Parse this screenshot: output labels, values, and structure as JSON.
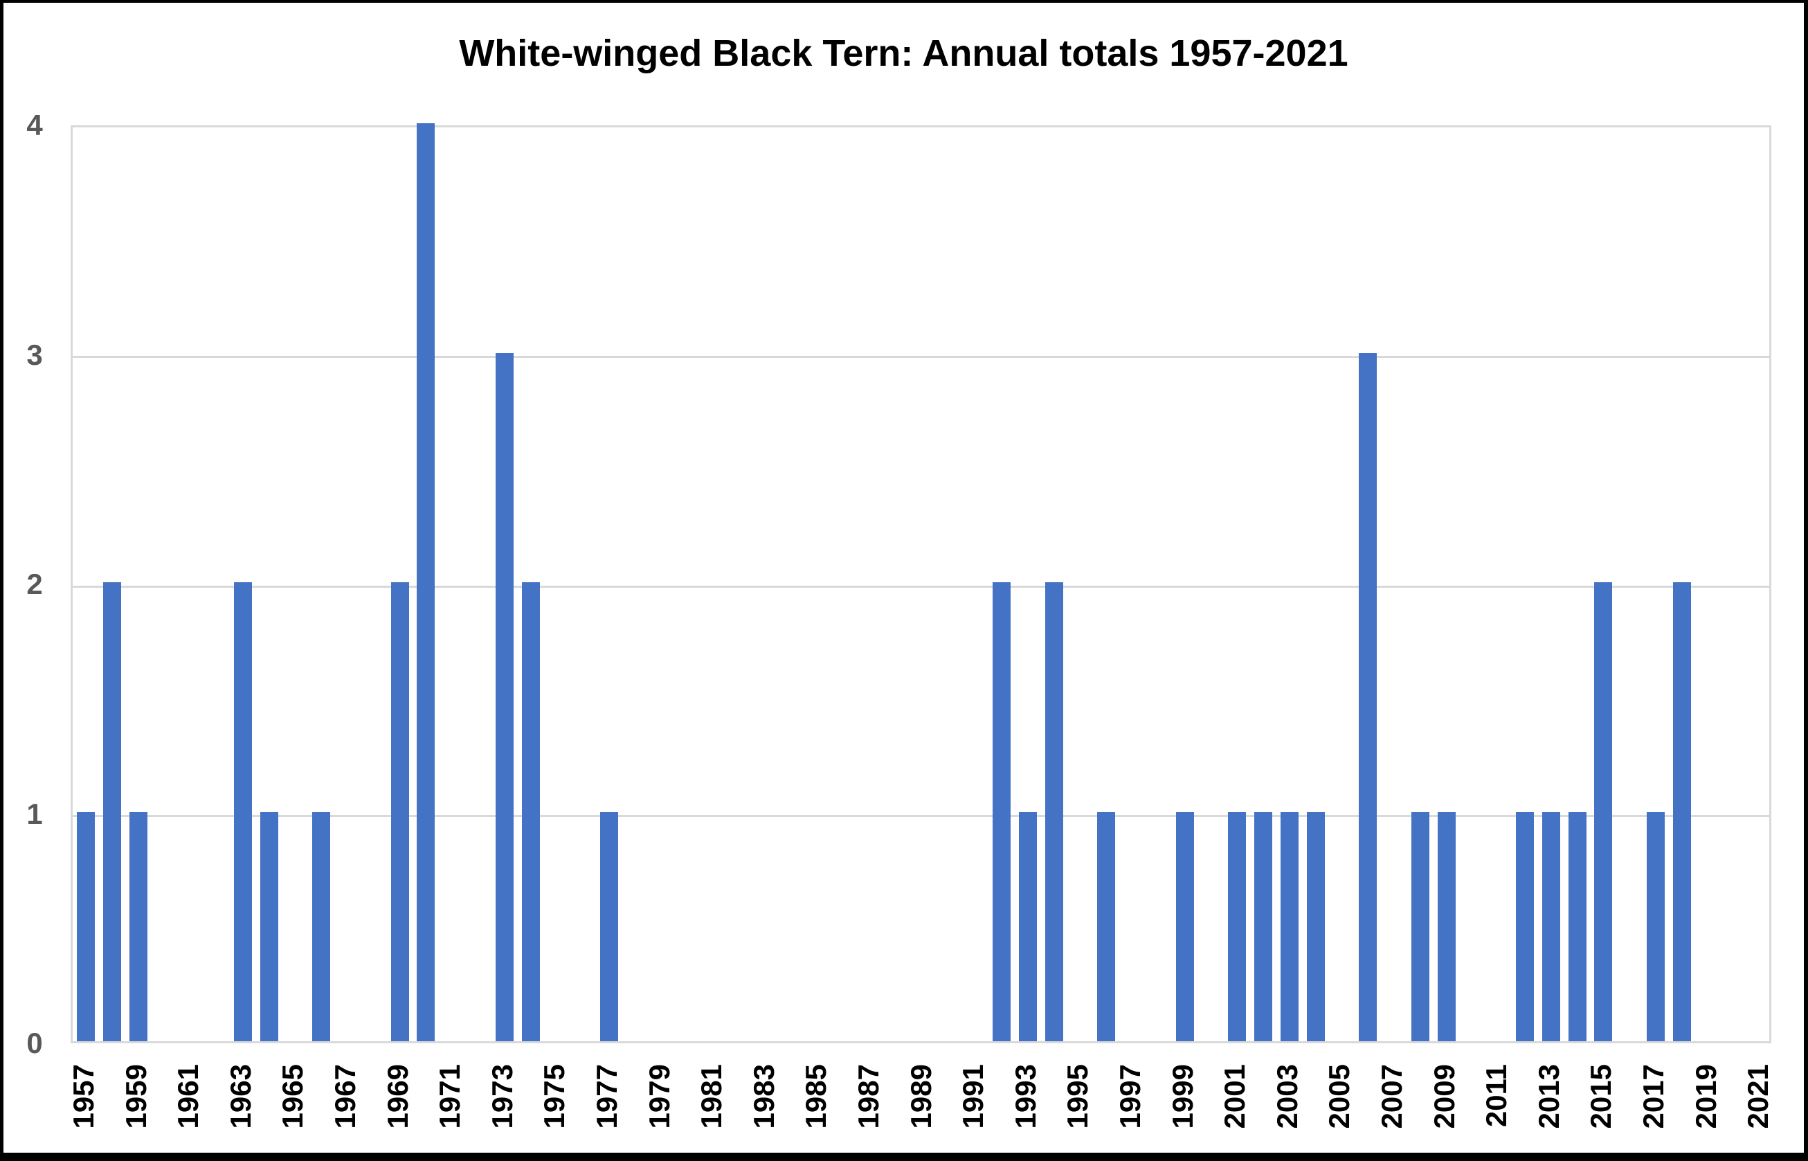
{
  "title": "White-winged Black Tern: Annual totals 1957-2021",
  "colors": {
    "bar": "#4472C4",
    "gridline": "#D9D9D9",
    "y_axis_label": "#595959",
    "x_axis_label": "#000000",
    "title_text": "#000000",
    "frame": "#000000",
    "background": "#FFFFFF"
  },
  "y_axis": {
    "tick_labels": [
      "0",
      "1",
      "2",
      "3",
      "4"
    ],
    "min": 0,
    "max": 4
  },
  "x_axis": {
    "tick_labels": [
      "1957",
      "1959",
      "1961",
      "1963",
      "1965",
      "1967",
      "1969",
      "1971",
      "1973",
      "1975",
      "1977",
      "1979",
      "1981",
      "1983",
      "1985",
      "1987",
      "1989",
      "1991",
      "1993",
      "1995",
      "1997",
      "1999",
      "2001",
      "2003",
      "2005",
      "2007",
      "2009",
      "2011",
      "2013",
      "2015",
      "2017",
      "2019",
      "2021"
    ]
  },
  "chart_data": {
    "type": "bar",
    "title": "White-winged Black Tern: Annual totals 1957-2021",
    "xlabel": "",
    "ylabel": "",
    "ylim": [
      0,
      4
    ],
    "grid": "horizontal",
    "legend": false,
    "bar_color": "#4472C4",
    "categories": [
      1957,
      1958,
      1959,
      1960,
      1961,
      1962,
      1963,
      1964,
      1965,
      1966,
      1967,
      1968,
      1969,
      1970,
      1971,
      1972,
      1973,
      1974,
      1975,
      1976,
      1977,
      1978,
      1979,
      1980,
      1981,
      1982,
      1983,
      1984,
      1985,
      1986,
      1987,
      1988,
      1989,
      1990,
      1991,
      1992,
      1993,
      1994,
      1995,
      1996,
      1997,
      1998,
      1999,
      2000,
      2001,
      2002,
      2003,
      2004,
      2005,
      2006,
      2007,
      2008,
      2009,
      2010,
      2011,
      2012,
      2013,
      2014,
      2015,
      2016,
      2017,
      2018,
      2019,
      2020,
      2021
    ],
    "values": [
      1,
      2,
      1,
      0,
      0,
      0,
      2,
      1,
      0,
      1,
      0,
      0,
      2,
      4,
      0,
      0,
      3,
      2,
      0,
      0,
      1,
      0,
      0,
      0,
      0,
      0,
      0,
      0,
      0,
      0,
      0,
      0,
      0,
      0,
      0,
      2,
      1,
      2,
      0,
      1,
      0,
      0,
      1,
      0,
      1,
      1,
      1,
      1,
      0,
      3,
      0,
      1,
      1,
      0,
      0,
      1,
      1,
      1,
      2,
      0,
      1,
      2,
      0,
      0,
      0
    ]
  }
}
